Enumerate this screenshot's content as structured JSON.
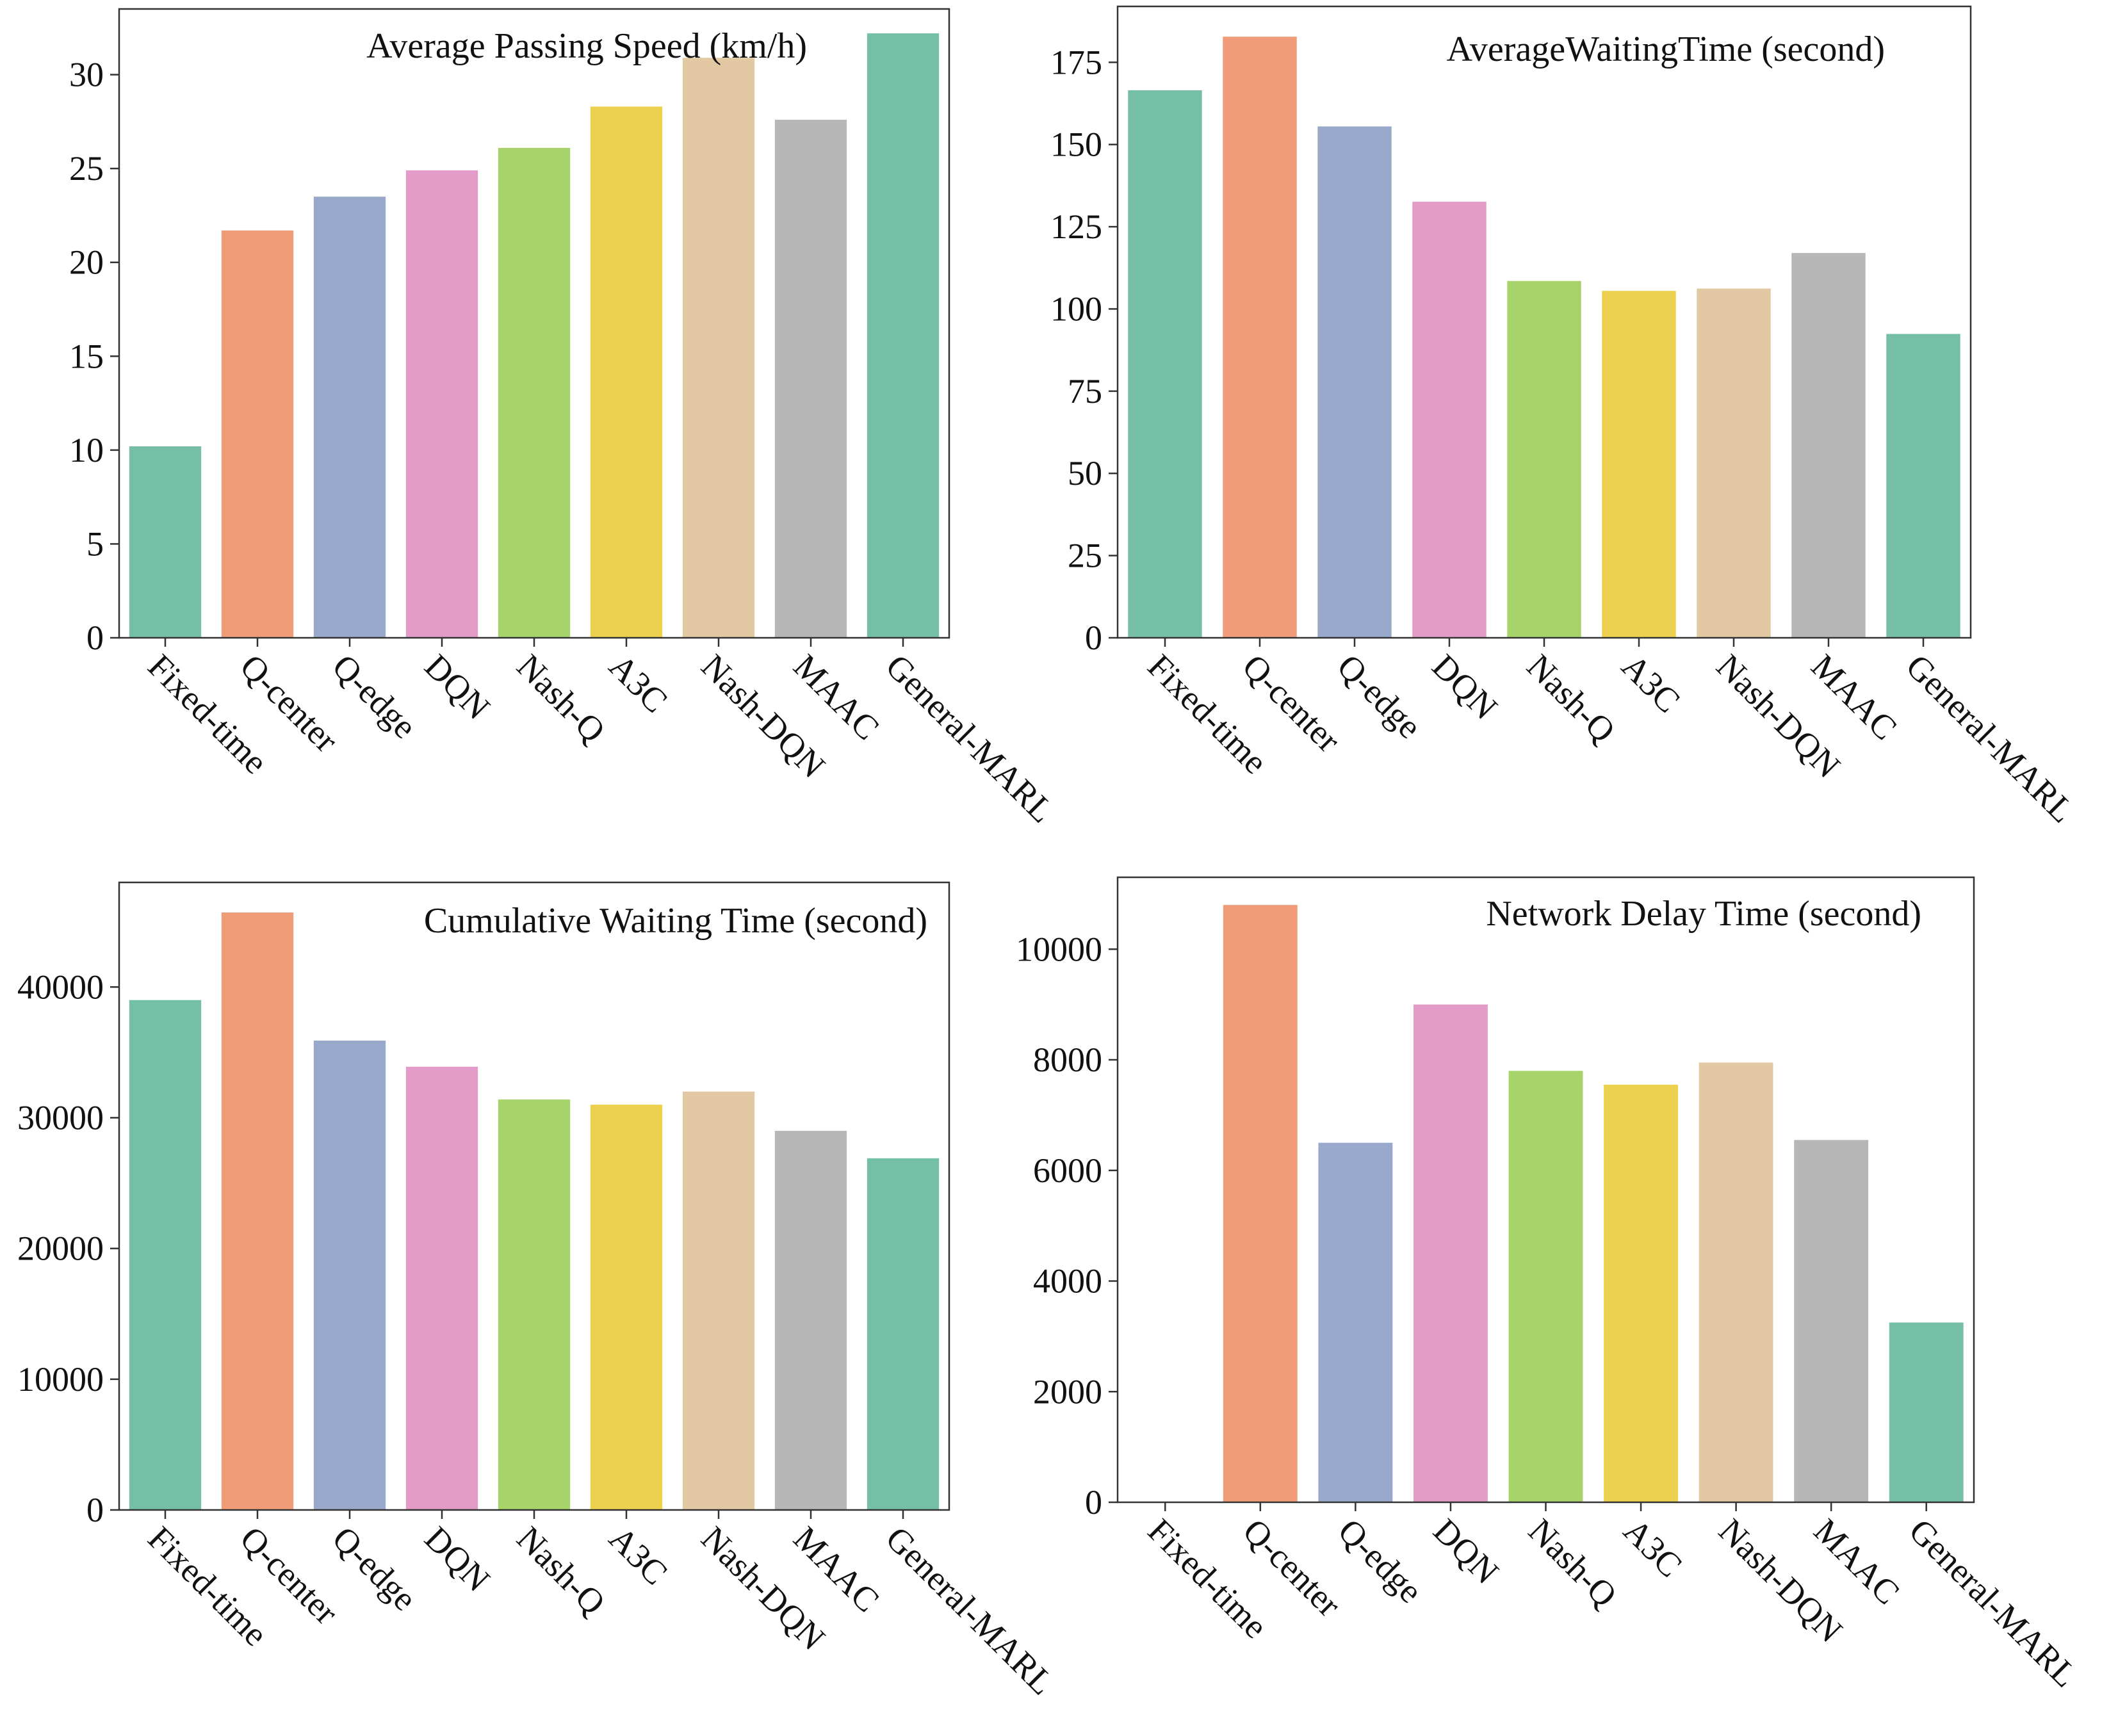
{
  "palette": [
    "#76bfa7",
    "#f19c78",
    "#99a9cb",
    "#e39bc8",
    "#a7d46a",
    "#ecd14e",
    "#e2c9a3",
    "#b7b7b7",
    "#76bfa7"
  ],
  "chart_data": [
    {
      "type": "bar",
      "title": "Average Passing Speed (km/h)",
      "categories": [
        "Fixed-time",
        "Q-center",
        "Q-edge",
        "DQN",
        "Nash-Q",
        "A3C",
        "Nash-DQN",
        "MAAC",
        "General-MARL"
      ],
      "values": [
        10.2,
        21.7,
        23.5,
        24.9,
        26.1,
        28.3,
        30.9,
        27.6,
        32.2
      ],
      "yticks": [
        "0",
        "5",
        "10",
        "15",
        "20",
        "25",
        "30"
      ],
      "ylim": [
        0,
        33.5
      ],
      "grid": false,
      "xlabel": "",
      "ylabel": ""
    },
    {
      "type": "bar",
      "title": "AverageWaitingTime (second)",
      "categories": [
        "Fixed-time",
        "Q-center",
        "Q-edge",
        "DQN",
        "Nash-Q",
        "A3C",
        "Nash-DQN",
        "MAAC",
        "General-MARL"
      ],
      "values": [
        166.5,
        182.8,
        155.5,
        132.6,
        108.5,
        105.5,
        106.2,
        117,
        92.4
      ],
      "yticks": [
        "0",
        "25",
        "50",
        "75",
        "100",
        "125",
        "150",
        "175"
      ],
      "ylim": [
        0,
        192
      ],
      "grid": false,
      "xlabel": "",
      "ylabel": ""
    },
    {
      "type": "bar",
      "title": "Cumulative Waiting Time (second)",
      "categories": [
        "Fixed-time",
        "Q-center",
        "Q-edge",
        "DQN",
        "Nash-Q",
        "A3C",
        "Nash-DQN",
        "MAAC",
        "General-MARL"
      ],
      "values": [
        39000,
        45700,
        35900,
        33900,
        31400,
        31000,
        32000,
        29000,
        26900
      ],
      "yticks": [
        "0",
        "10000",
        "20000",
        "30000",
        "40000"
      ],
      "ylim": [
        0,
        48000
      ],
      "grid": false,
      "xlabel": "",
      "ylabel": ""
    },
    {
      "type": "bar",
      "title": "Network Delay Time (second)",
      "categories": [
        "Fixed-time",
        "Q-center",
        "Q-edge",
        "DQN",
        "Nash-Q",
        "A3C",
        "Nash-DQN",
        "MAAC",
        "General-MARL"
      ],
      "values": [
        0,
        10800,
        6500,
        9000,
        7800,
        7550,
        7950,
        6550,
        3250
      ],
      "yticks": [
        "0",
        "2000",
        "4000",
        "6000",
        "8000",
        "10000"
      ],
      "ylim": [
        0,
        11300
      ],
      "grid": false,
      "xlabel": "",
      "ylabel": ""
    }
  ]
}
